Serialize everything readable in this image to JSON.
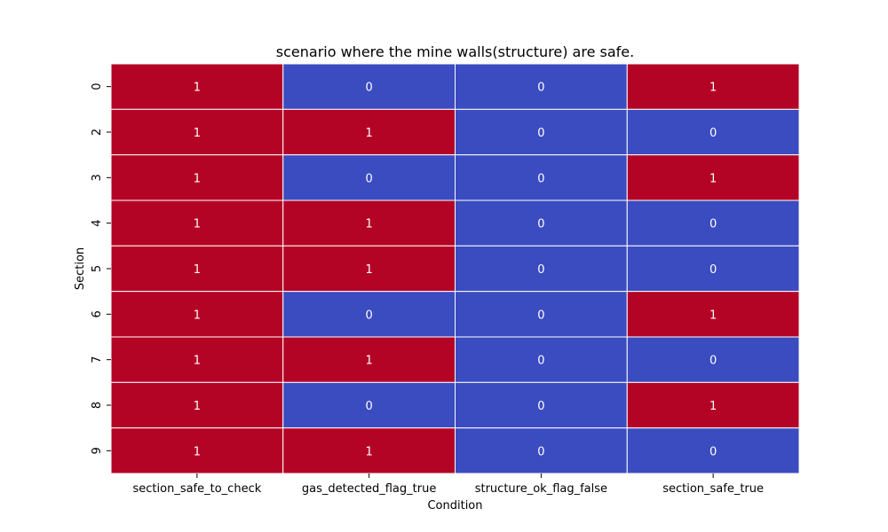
{
  "chart_data": {
    "type": "heatmap",
    "title": "scenario where the mine walls(structure) are safe.",
    "xlabel": "Condition",
    "ylabel": "Section",
    "columns": [
      "section_safe_to_check",
      "gas_detected_flag_true",
      "structure_ok_flag_false",
      "section_safe_true"
    ],
    "rows": [
      "0",
      "2",
      "3",
      "4",
      "5",
      "6",
      "7",
      "8",
      "9"
    ],
    "values": [
      [
        1,
        0,
        0,
        1
      ],
      [
        1,
        1,
        0,
        0
      ],
      [
        1,
        0,
        0,
        1
      ],
      [
        1,
        1,
        0,
        0
      ],
      [
        1,
        1,
        0,
        0
      ],
      [
        1,
        0,
        0,
        1
      ],
      [
        1,
        1,
        0,
        0
      ],
      [
        1,
        0,
        0,
        1
      ],
      [
        1,
        1,
        0,
        0
      ]
    ],
    "colormap": "coolwarm",
    "colors": {
      "low": "#3b4cc0",
      "high": "#b40426",
      "grid_line": "#ffffff",
      "annotation": "#ffffff"
    },
    "annotated": true,
    "colorbar": false
  }
}
